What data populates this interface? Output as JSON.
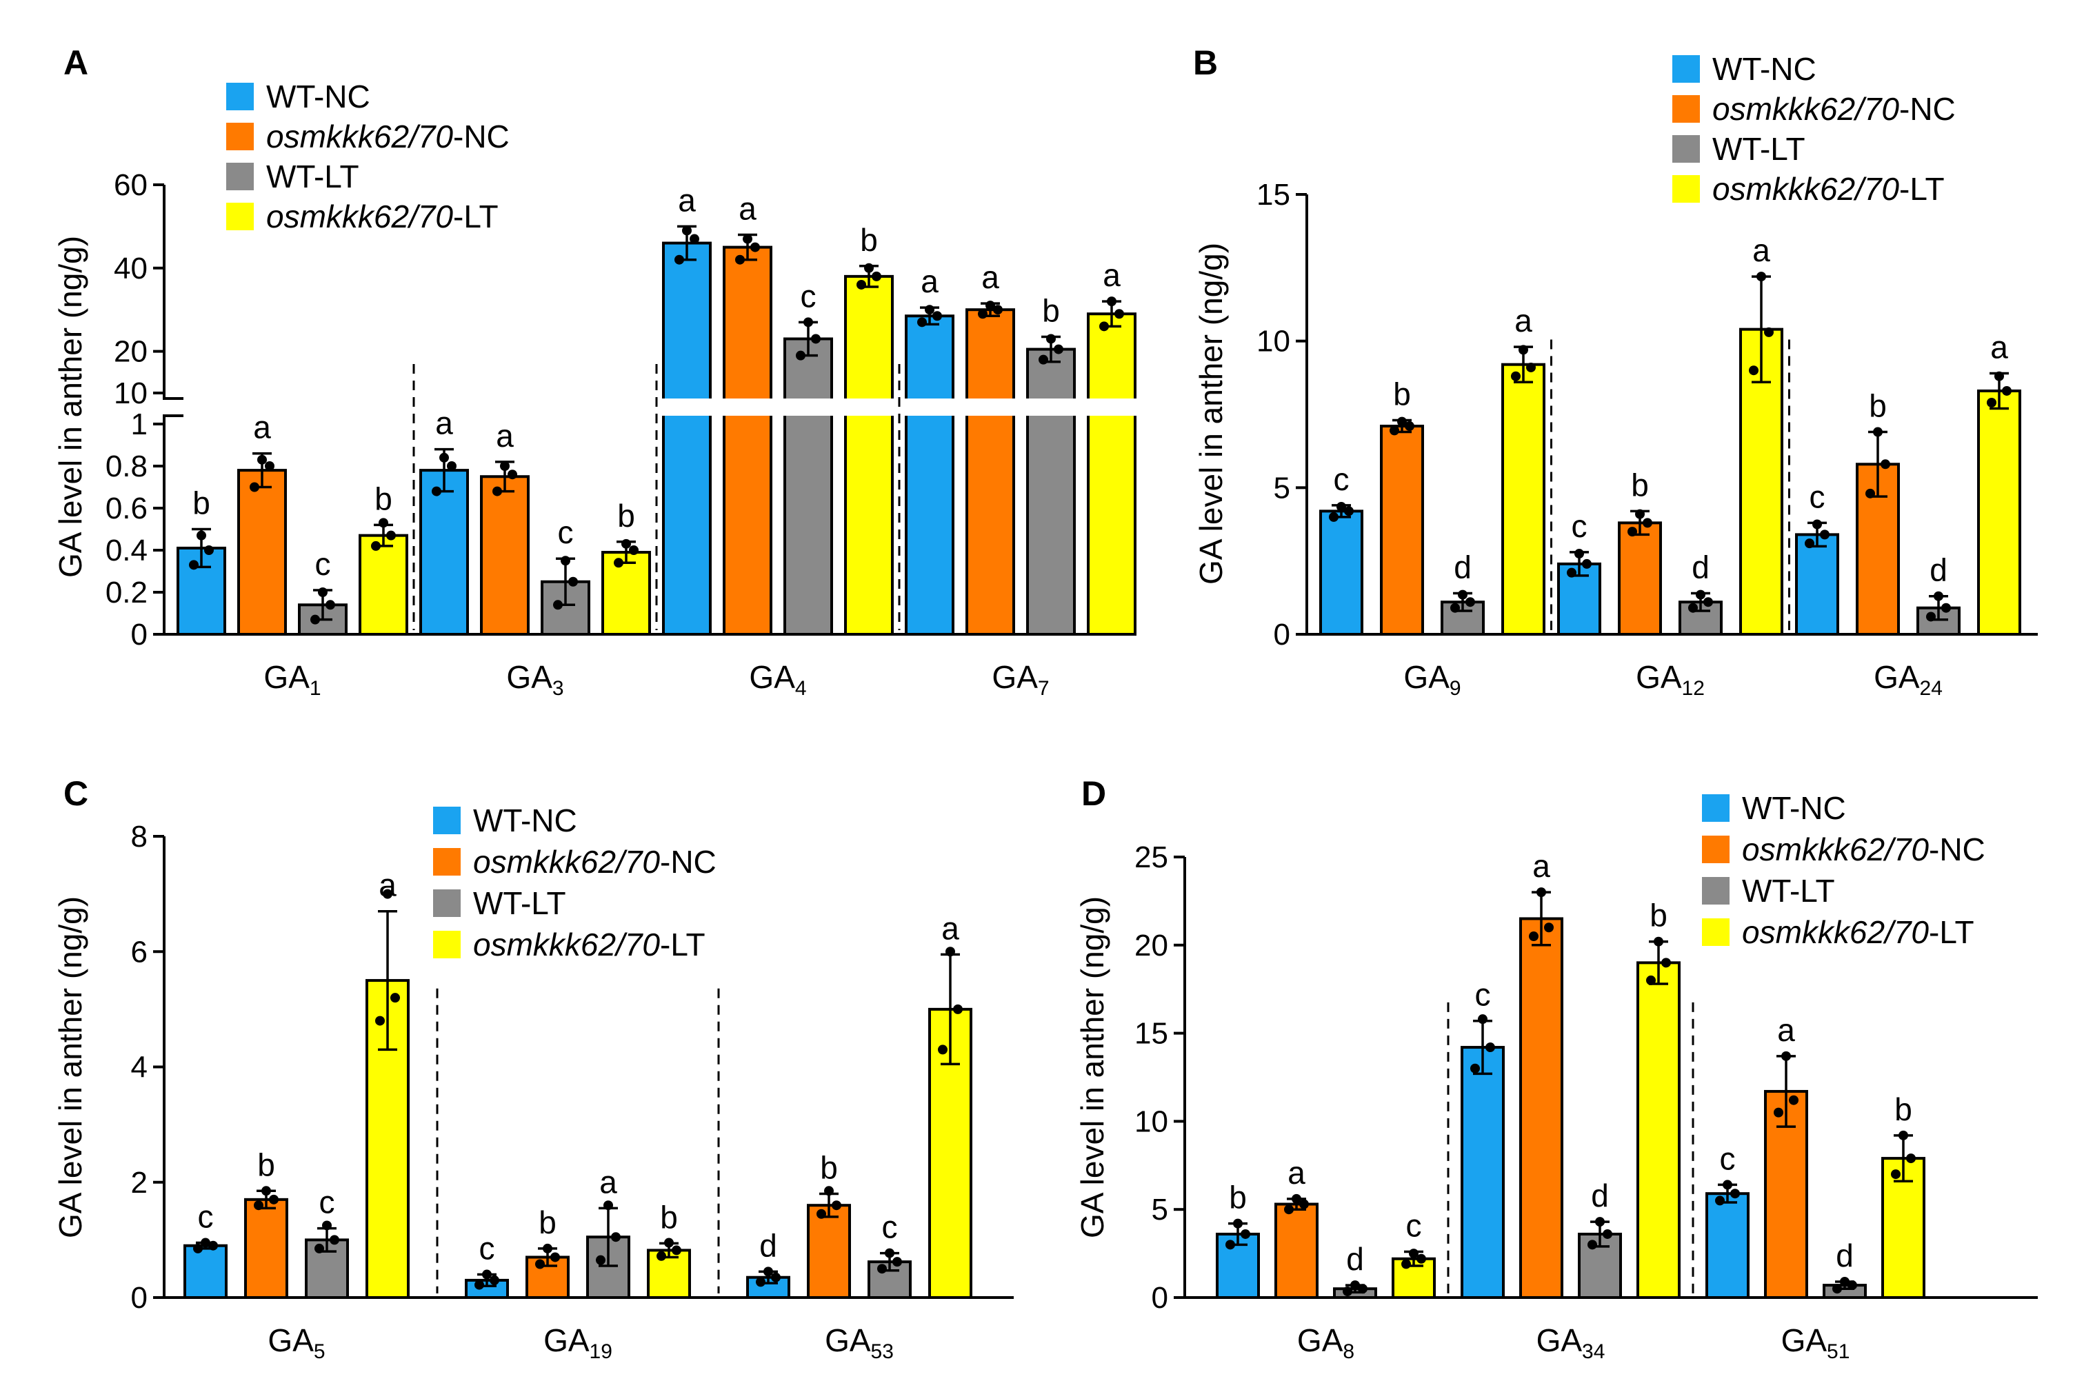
{
  "colors": {
    "WT-NC": "#1aa3f0",
    "osmkkk62/70-NC": "#ff7a00",
    "WT-LT": "#8a8a8a",
    "osmkkk62/70-LT": "#ffff00"
  },
  "chart_data": [
    {
      "type": "bar",
      "panel": "A",
      "ylabel": "GA level in anther (ng/g)",
      "legend": {
        "placement": "top-left",
        "entries": [
          {
            "name": "WT-NC",
            "italic": "",
            "suffix": "WT-NC"
          },
          {
            "name": "osmkkk62/70-NC",
            "italic": "osmkkk62/70",
            "suffix": "-NC"
          },
          {
            "name": "WT-LT",
            "italic": "",
            "suffix": "WT-LT"
          },
          {
            "name": "osmkkk62/70-LT",
            "italic": "osmkkk62/70",
            "suffix": "-LT"
          }
        ]
      },
      "axis_break": {
        "lower_range": [
          0,
          1
        ],
        "upper_range": [
          10,
          60
        ]
      },
      "yticks_lower": [
        "0",
        "0.2",
        "0.4",
        "0.6",
        "0.8",
        "1"
      ],
      "yticks_upper": [
        "10",
        "20",
        "40",
        "60"
      ],
      "groups": [
        {
          "base": "GA",
          "sub": "1",
          "values": [
            0.41,
            0.78,
            0.14,
            0.47
          ],
          "errors": [
            0.09,
            0.08,
            0.07,
            0.05
          ],
          "letters": [
            "b",
            "a",
            "c",
            "b"
          ],
          "points": [
            [
              0.33,
              0.47,
              0.4
            ],
            [
              0.7,
              0.83,
              0.8
            ],
            [
              0.07,
              0.2,
              0.14
            ],
            [
              0.42,
              0.53,
              0.47
            ]
          ]
        },
        {
          "base": "GA",
          "sub": "3",
          "values": [
            0.78,
            0.75,
            0.25,
            0.39
          ],
          "errors": [
            0.1,
            0.07,
            0.11,
            0.05
          ],
          "letters": [
            "a",
            "a",
            "c",
            "b"
          ],
          "points": [
            [
              0.68,
              0.84,
              0.8
            ],
            [
              0.68,
              0.8,
              0.76
            ],
            [
              0.14,
              0.35,
              0.25
            ],
            [
              0.34,
              0.43,
              0.4
            ]
          ]
        },
        {
          "base": "GA",
          "sub": "4",
          "values": [
            46,
            45,
            23,
            38
          ],
          "errors": [
            4,
            3,
            4,
            2.5
          ],
          "letters": [
            "a",
            "a",
            "c",
            "b"
          ],
          "points": [
            [
              42,
              49,
              47
            ],
            [
              42,
              47,
              45
            ],
            [
              19,
              27,
              23
            ],
            [
              36,
              40,
              38
            ]
          ]
        },
        {
          "base": "GA",
          "sub": "7",
          "values": [
            28.5,
            30,
            20.5,
            29
          ],
          "errors": [
            2,
            1.5,
            3,
            3
          ],
          "letters": [
            "a",
            "a",
            "b",
            "a"
          ],
          "points": [
            [
              27,
              30,
              28.5
            ],
            [
              29,
              31,
              30
            ],
            [
              18,
              23,
              20.5
            ],
            [
              26,
              32,
              29
            ]
          ]
        }
      ]
    },
    {
      "type": "bar",
      "panel": "B",
      "ylabel": "GA level in anther (ng/g)",
      "legend": {
        "placement": "top-right",
        "entries": [
          {
            "name": "WT-NC",
            "italic": "",
            "suffix": "WT-NC"
          },
          {
            "name": "osmkkk62/70-NC",
            "italic": "osmkkk62/70",
            "suffix": "-NC"
          },
          {
            "name": "WT-LT",
            "italic": "",
            "suffix": "WT-LT"
          },
          {
            "name": "osmkkk62/70-LT",
            "italic": "osmkkk62/70",
            "suffix": "-LT"
          }
        ]
      },
      "ylim": [
        0,
        15
      ],
      "yticks": [
        "0",
        "5",
        "10",
        "15"
      ],
      "groups": [
        {
          "base": "GA",
          "sub": "9",
          "values": [
            4.2,
            7.1,
            1.1,
            9.2
          ],
          "errors": [
            0.2,
            0.2,
            0.3,
            0.6
          ],
          "letters": [
            "c",
            "b",
            "d",
            "a"
          ],
          "points": [
            [
              4.0,
              4.35,
              4.2
            ],
            [
              6.95,
              7.25,
              7.1
            ],
            [
              0.9,
              1.35,
              1.1
            ],
            [
              8.8,
              9.7,
              9.1
            ]
          ]
        },
        {
          "base": "GA",
          "sub": "12",
          "values": [
            2.4,
            3.8,
            1.1,
            10.4
          ],
          "errors": [
            0.4,
            0.4,
            0.3,
            1.8
          ],
          "letters": [
            "c",
            "b",
            "d",
            "a"
          ],
          "points": [
            [
              2.1,
              2.75,
              2.4
            ],
            [
              3.5,
              4.1,
              3.8
            ],
            [
              0.9,
              1.35,
              1.1
            ],
            [
              9.0,
              12.2,
              10.3
            ]
          ]
        },
        {
          "base": "GA",
          "sub": "24",
          "values": [
            3.4,
            5.8,
            0.9,
            8.3
          ],
          "errors": [
            0.4,
            1.1,
            0.4,
            0.6
          ],
          "letters": [
            "c",
            "b",
            "d",
            "a"
          ],
          "points": [
            [
              3.1,
              3.75,
              3.4
            ],
            [
              4.8,
              6.9,
              5.8
            ],
            [
              0.6,
              1.3,
              0.9
            ],
            [
              7.9,
              8.8,
              8.3
            ]
          ]
        }
      ]
    },
    {
      "type": "bar",
      "panel": "C",
      "ylabel": "GA level in anther (ng/g)",
      "legend": {
        "placement": "top-center",
        "entries": [
          {
            "name": "WT-NC",
            "italic": "",
            "suffix": "WT-NC"
          },
          {
            "name": "osmkkk62/70-NC",
            "italic": "osmkkk62/70",
            "suffix": "-NC"
          },
          {
            "name": "WT-LT",
            "italic": "",
            "suffix": "WT-LT"
          },
          {
            "name": "osmkkk62/70-LT",
            "italic": "osmkkk62/70",
            "suffix": "-LT"
          }
        ]
      },
      "ylim": [
        0,
        8
      ],
      "yticks": [
        "0",
        "2",
        "4",
        "6",
        "8"
      ],
      "groups": [
        {
          "base": "GA",
          "sub": "5",
          "values": [
            0.9,
            1.7,
            1.0,
            5.5
          ],
          "errors": [
            0.05,
            0.15,
            0.2,
            1.2
          ],
          "letters": [
            "c",
            "b",
            "c",
            "a"
          ],
          "points": [
            [
              0.85,
              0.95,
              0.9
            ],
            [
              1.6,
              1.85,
              1.7
            ],
            [
              0.85,
              1.25,
              1.0
            ],
            [
              4.8,
              7.0,
              5.2
            ]
          ]
        },
        {
          "base": "GA",
          "sub": "19",
          "values": [
            0.3,
            0.7,
            1.05,
            0.82
          ],
          "errors": [
            0.1,
            0.15,
            0.5,
            0.12
          ],
          "letters": [
            "c",
            "b",
            "a",
            "b"
          ],
          "points": [
            [
              0.22,
              0.4,
              0.3
            ],
            [
              0.58,
              0.85,
              0.7
            ],
            [
              0.65,
              1.6,
              1.05
            ],
            [
              0.72,
              0.95,
              0.82
            ]
          ]
        },
        {
          "base": "GA",
          "sub": "53",
          "values": [
            0.35,
            1.6,
            0.62,
            5.0
          ],
          "errors": [
            0.1,
            0.2,
            0.15,
            0.95
          ],
          "letters": [
            "d",
            "b",
            "c",
            "a"
          ],
          "points": [
            [
              0.27,
              0.45,
              0.35
            ],
            [
              1.45,
              1.85,
              1.6
            ],
            [
              0.5,
              0.77,
              0.62
            ],
            [
              4.3,
              6.0,
              5.0
            ]
          ]
        }
      ]
    },
    {
      "type": "bar",
      "panel": "D",
      "ylabel": "GA level in anther (ng/g)",
      "legend": {
        "placement": "top-right",
        "entries": [
          {
            "name": "WT-NC",
            "italic": "",
            "suffix": "WT-NC"
          },
          {
            "name": "osmkkk62/70-NC",
            "italic": "osmkkk62/70",
            "suffix": "-NC"
          },
          {
            "name": "WT-LT",
            "italic": "",
            "suffix": "WT-LT"
          },
          {
            "name": "osmkkk62/70-LT",
            "italic": "osmkkk62/70",
            "suffix": "-LT"
          }
        ]
      },
      "ylim": [
        0,
        25
      ],
      "yticks": [
        "0",
        "5",
        "10",
        "15",
        "20",
        "25"
      ],
      "groups": [
        {
          "base": "GA",
          "sub": "8",
          "values": [
            3.6,
            5.3,
            0.5,
            2.2
          ],
          "errors": [
            0.6,
            0.3,
            0.2,
            0.4
          ],
          "letters": [
            "b",
            "a",
            "d",
            "c"
          ],
          "points": [
            [
              3.0,
              4.2,
              3.6
            ],
            [
              5.0,
              5.6,
              5.3
            ],
            [
              0.35,
              0.7,
              0.5
            ],
            [
              1.9,
              2.5,
              2.2
            ]
          ]
        },
        {
          "base": "GA",
          "sub": "34",
          "values": [
            14.2,
            21.5,
            3.6,
            19.0
          ],
          "errors": [
            1.5,
            1.5,
            0.7,
            1.2
          ],
          "letters": [
            "c",
            "a",
            "d",
            "b"
          ],
          "points": [
            [
              13.0,
              15.8,
              14.2
            ],
            [
              20.5,
              23.0,
              21.0
            ],
            [
              3.0,
              4.3,
              3.6
            ],
            [
              18.0,
              20.2,
              19.0
            ]
          ]
        },
        {
          "base": "GA",
          "sub": "51",
          "values": [
            5.9,
            11.7,
            0.7,
            7.9
          ],
          "errors": [
            0.5,
            2.0,
            0.2,
            1.3
          ],
          "letters": [
            "c",
            "a",
            "d",
            "b"
          ],
          "points": [
            [
              5.5,
              6.4,
              5.9
            ],
            [
              10.5,
              13.7,
              11.2
            ],
            [
              0.5,
              0.9,
              0.7
            ],
            [
              7.0,
              9.2,
              7.9
            ]
          ]
        }
      ]
    }
  ]
}
